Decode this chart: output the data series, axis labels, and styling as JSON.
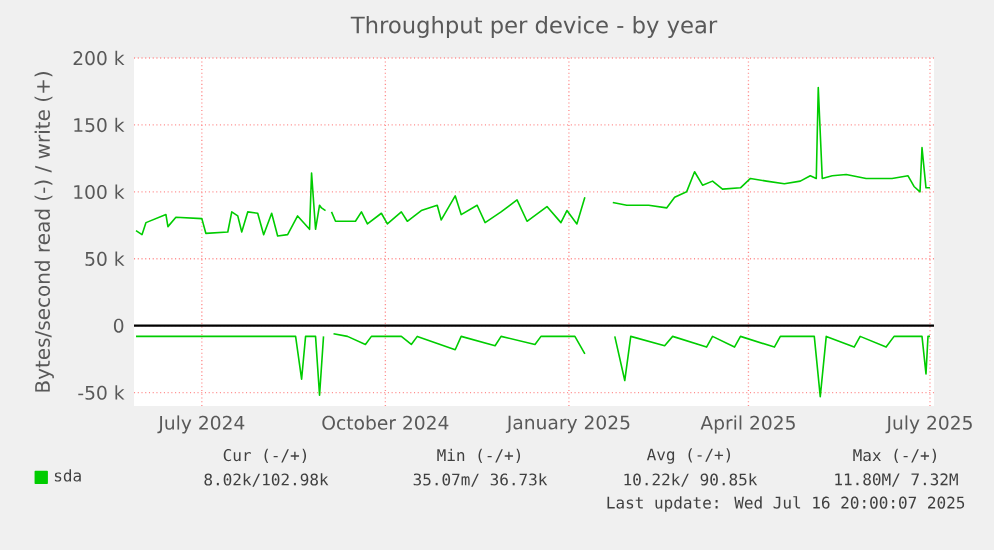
{
  "chart_data": {
    "type": "line",
    "title": "Throughput per device - by year",
    "ylabel": "Bytes/second read (-) / write (+)",
    "xlim": [
      "2024-05-28",
      "2025-07-03"
    ],
    "ylim": [
      -60000,
      200000
    ],
    "xticks": [
      {
        "value": "2024-07-01",
        "label": "July 2024"
      },
      {
        "value": "2024-10-01",
        "label": "October 2024"
      },
      {
        "value": "2025-01-01",
        "label": "January 2025"
      },
      {
        "value": "2025-04-01",
        "label": "April 2025"
      },
      {
        "value": "2025-07-01",
        "label": "July 2025"
      }
    ],
    "yticks": [
      {
        "value": -50000,
        "label": "-50 k"
      },
      0,
      {
        "value": 50000,
        "label": "50 k"
      },
      {
        "value": 100000,
        "label": "100 k"
      },
      {
        "value": 150000,
        "label": "150 k"
      },
      {
        "value": 200000,
        "label": "200 k"
      }
    ],
    "grid": true,
    "legend": "bottom",
    "ref_lines": [
      {
        "axis": "y",
        "value": 0,
        "color": "#000000"
      }
    ],
    "series": [
      {
        "name": "sda",
        "color": "#00cc00",
        "x": [
          "2024-05-29",
          "2024-06-01",
          "2024-06-03",
          "2024-06-08",
          "2024-06-13",
          "2024-06-14",
          "2024-06-18",
          "2024-07-01",
          "2024-07-03",
          "2024-07-14",
          "2024-07-16",
          "2024-07-19",
          "2024-07-21",
          "2024-07-24",
          "2024-07-29",
          "2024-08-01",
          "2024-08-05",
          "2024-08-08",
          "2024-08-13",
          "2024-08-18",
          "2024-08-24",
          "2024-08-25",
          "2024-08-27",
          "2024-08-29",
          "2024-08-30",
          "2024-09-01",
          "2024-09-02",
          "2024-09-04",
          "2024-09-06",
          "2024-09-16",
          "2024-09-19",
          "2024-09-22",
          "2024-09-29",
          "2024-10-02",
          "2024-10-09",
          "2024-10-12",
          "2024-10-19",
          "2024-10-27",
          "2024-10-29",
          "2024-11-05",
          "2024-11-08",
          "2024-11-16",
          "2024-11-20",
          "2024-11-28",
          "2024-12-06",
          "2024-12-11",
          "2024-12-21",
          "2024-12-28",
          "2024-12-31",
          "2025-01-05",
          "2025-01-09",
          "2025-01-15",
          "2025-01-23",
          "2025-01-30",
          "2025-02-10",
          "2025-02-19",
          "2025-02-23",
          "2025-03-01",
          "2025-03-05",
          "2025-03-09",
          "2025-03-14",
          "2025-03-19",
          "2025-03-28",
          "2025-04-02",
          "2025-04-10",
          "2025-04-19",
          "2025-04-27",
          "2025-05-02",
          "2025-05-05",
          "2025-05-06",
          "2025-05-08",
          "2025-05-13",
          "2025-05-20",
          "2025-05-30",
          "2025-06-12",
          "2025-06-20",
          "2025-06-23",
          "2025-06-26",
          "2025-06-27",
          "2025-06-29",
          "2025-07-01"
        ],
        "values": [
          71000,
          68000,
          77000,
          80000,
          83000,
          74000,
          81000,
          80000,
          69000,
          70000,
          85000,
          82000,
          70000,
          85000,
          84000,
          68000,
          84000,
          67000,
          68000,
          82000,
          72000,
          114000,
          72000,
          90000,
          88000,
          86000,
          null,
          85000,
          78000,
          78000,
          85000,
          76000,
          84000,
          76000,
          85000,
          78000,
          86000,
          90000,
          79000,
          97000,
          83000,
          90000,
          77000,
          85000,
          94000,
          78000,
          89000,
          77000,
          86000,
          76000,
          96000,
          null,
          92000,
          90000,
          90000,
          88000,
          96000,
          100000,
          115000,
          105000,
          108000,
          102000,
          103000,
          110000,
          108000,
          106000,
          108000,
          112000,
          110000,
          178000,
          110000,
          112000,
          113000,
          110000,
          110000,
          112000,
          104000,
          100000,
          133000,
          103000,
          103000
        ]
      },
      {
        "color": "#00cc00",
        "x": [
          "2024-05-29",
          "2024-07-01",
          "2024-08-17",
          "2024-08-20",
          "2024-08-22",
          "2024-08-27",
          "2024-08-29",
          "2024-08-31",
          "2024-09-02",
          "2024-09-05",
          "2024-09-12",
          "2024-09-21",
          "2024-09-24",
          "2024-10-09",
          "2024-10-14",
          "2024-10-17",
          "2024-11-05",
          "2024-11-08",
          "2024-11-25",
          "2024-11-28",
          "2024-12-15",
          "2024-12-18",
          "2025-01-04",
          "2025-01-09",
          "2025-01-15",
          "2025-01-24",
          "2025-01-29",
          "2025-02-01",
          "2025-02-18",
          "2025-02-22",
          "2025-03-11",
          "2025-03-14",
          "2025-03-25",
          "2025-03-28",
          "2025-04-14",
          "2025-04-17",
          "2025-05-04",
          "2025-05-07",
          "2025-05-10",
          "2025-05-24",
          "2025-05-27",
          "2025-06-09",
          "2025-06-13",
          "2025-06-27",
          "2025-06-29",
          "2025-06-30",
          "2025-07-01"
        ],
        "values": [
          -8000,
          -8000,
          -8000,
          -40000,
          -8000,
          -8000,
          -52000,
          -8000,
          null,
          -6000,
          -8000,
          -14000,
          -8000,
          -8000,
          -14000,
          -8000,
          -18000,
          -8000,
          -15000,
          -8000,
          -14000,
          -8000,
          -8000,
          -21000,
          null,
          -8000,
          -41000,
          -8000,
          -15000,
          -8000,
          -16000,
          -8000,
          -16000,
          -8000,
          -16000,
          -8000,
          -8000,
          -53000,
          -8000,
          -16000,
          -8000,
          -16000,
          -8000,
          -8000,
          -36000,
          -8000,
          -8000
        ]
      }
    ],
    "annotations": [
      "Cur (-/+)",
      "Min (-/+)",
      "Avg (-/+)",
      "Max (-/+)",
      "8.02k/102.98k",
      "35.07m/ 36.73k",
      "10.22k/ 90.85k",
      "11.80M/ 7.32M",
      "Last update: Wed Jul 16 20:00:07 2025"
    ]
  }
}
